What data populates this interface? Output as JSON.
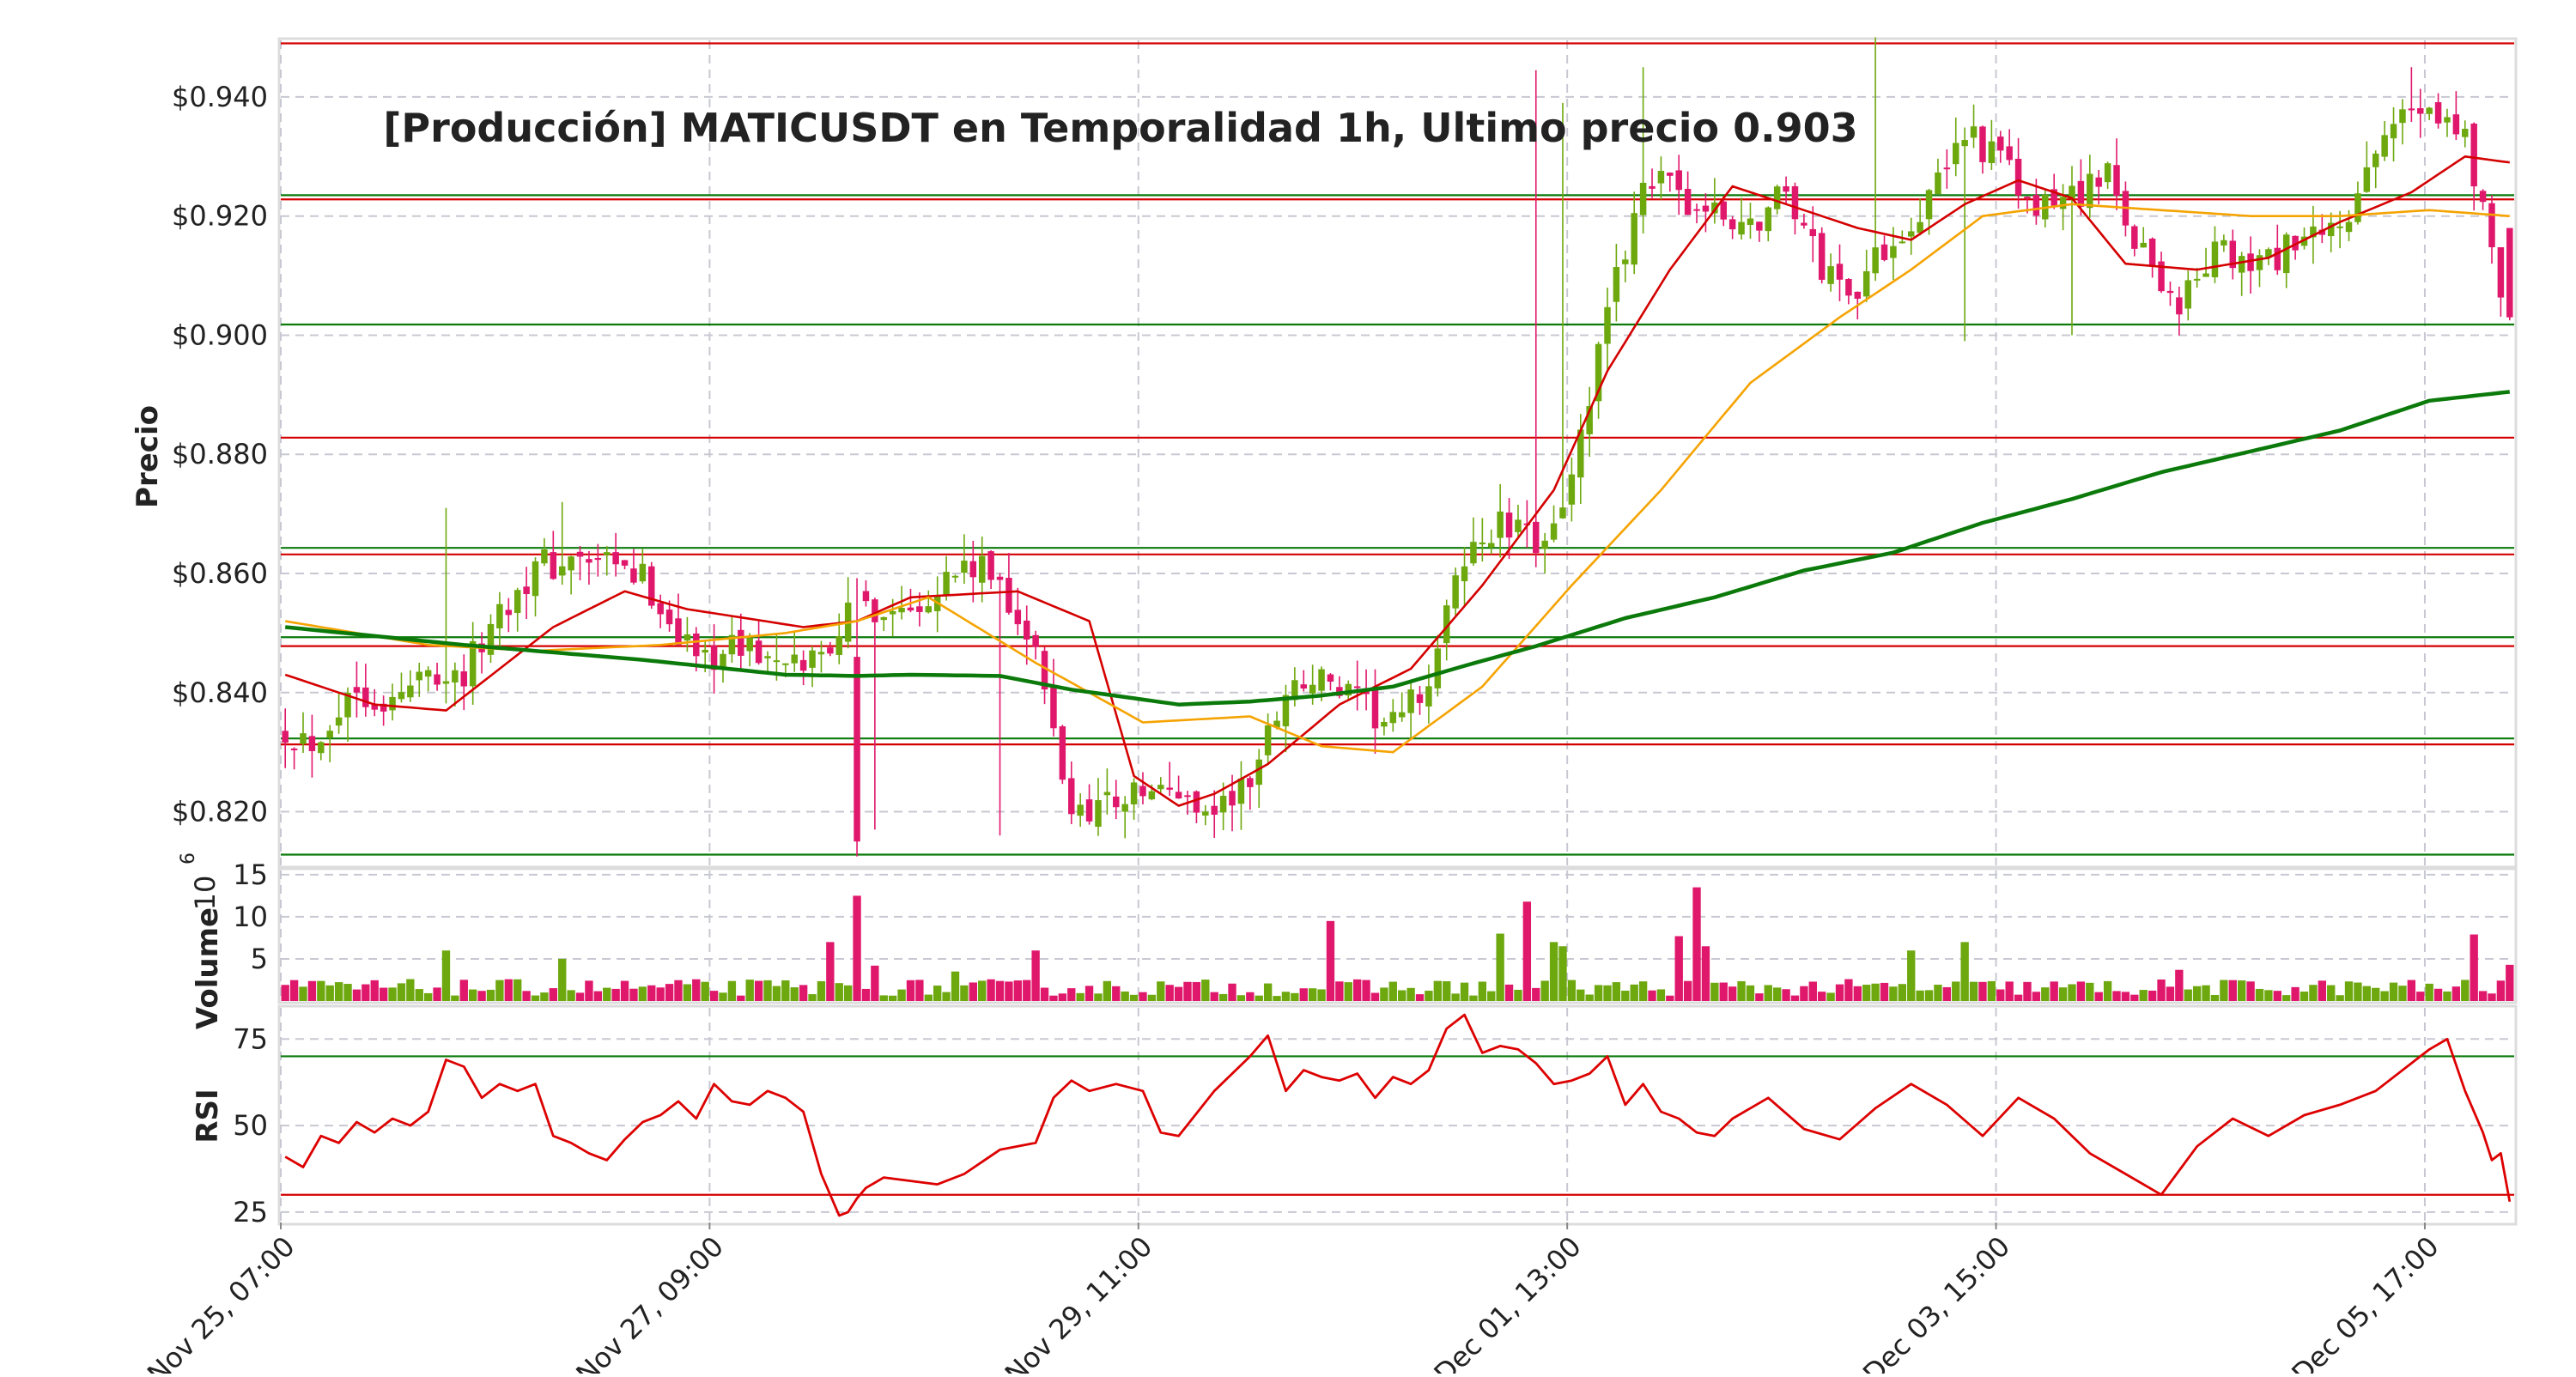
{
  "title": "[Producción] MATICUSDT en Temporalidad 1h, Ultimo precio 0.903",
  "colors": {
    "up": "#6ea80f",
    "down": "#e0186c",
    "ma_fast": "#d40000",
    "ma_mid": "#f5a300",
    "ma_slow": "#0b7a0b",
    "support": "#0b7a0b",
    "resistance": "#d40000",
    "rsi_line": "#dd0000",
    "grid": "#c8c8d2",
    "frame": "#dcdcdc",
    "text": "#222222"
  },
  "chart_data": [
    {
      "type": "candlestick",
      "panel": "price",
      "title": "[Producción] MATICUSDT en Temporalidad 1h, Ultimo precio 0.903",
      "ylabel": "Precio",
      "ylim": [
        0.811,
        0.9495
      ],
      "yticks": [
        0.82,
        0.84,
        0.86,
        0.88,
        0.9,
        0.92,
        0.94
      ],
      "ytick_labels": [
        "$0.820",
        "$0.840",
        "$0.860",
        "$0.880",
        "$0.900",
        "$0.920",
        "$0.940"
      ],
      "xlim": [
        0,
        250
      ],
      "xticks": [
        0,
        48,
        96,
        144,
        192,
        240
      ],
      "xtick_labels": [
        "Nov 25, 07:00",
        "Nov 27, 09:00",
        "Nov 29, 11:00",
        "Dec 01, 13:00",
        "Dec 03, 15:00",
        "Dec 05, 17:00"
      ],
      "grid": true,
      "last_price": 0.903,
      "candles_from_anchors": {
        "count": 250,
        "x": [
          0,
          3,
          8,
          12,
          16,
          20,
          24,
          28,
          34,
          40,
          46,
          52,
          56,
          60,
          64,
          68,
          72,
          76,
          80,
          84,
          88,
          92,
          96,
          100,
          104,
          108,
          112,
          116,
          120,
          124,
          128,
          132,
          136,
          140,
          144,
          148,
          152,
          156,
          160,
          164,
          168,
          172,
          176,
          180,
          184,
          188,
          192,
          196,
          200,
          204,
          208,
          212,
          216,
          220,
          224,
          228,
          232,
          236,
          240,
          244,
          249
        ],
        "close": [
          0.834,
          0.832,
          0.841,
          0.838,
          0.844,
          0.843,
          0.854,
          0.861,
          0.862,
          0.859,
          0.846,
          0.848,
          0.843,
          0.847,
          0.855,
          0.854,
          0.857,
          0.861,
          0.859,
          0.846,
          0.82,
          0.822,
          0.823,
          0.823,
          0.82,
          0.825,
          0.841,
          0.842,
          0.838,
          0.834,
          0.842,
          0.863,
          0.868,
          0.865,
          0.875,
          0.903,
          0.927,
          0.923,
          0.92,
          0.918,
          0.925,
          0.911,
          0.908,
          0.917,
          0.922,
          0.935,
          0.929,
          0.92,
          0.924,
          0.926,
          0.914,
          0.905,
          0.914,
          0.911,
          0.914,
          0.916,
          0.922,
          0.936,
          0.94,
          0.933,
          0.903
        ]
      },
      "moving_averages": [
        {
          "color_key": "ma_fast",
          "x": [
            0,
            10,
            18,
            30,
            38,
            45,
            58,
            64,
            70,
            82,
            90,
            95,
            100,
            104,
            110,
            118,
            126,
            134,
            142,
            148,
            155,
            162,
            168,
            176,
            182,
            188,
            194,
            200,
            206,
            214,
            222,
            230,
            238,
            244,
            249
          ],
          "y": [
            0.843,
            0.838,
            0.837,
            0.851,
            0.857,
            0.854,
            0.851,
            0.852,
            0.856,
            0.857,
            0.852,
            0.826,
            0.821,
            0.823,
            0.828,
            0.838,
            0.844,
            0.858,
            0.874,
            0.894,
            0.911,
            0.925,
            0.922,
            0.918,
            0.916,
            0.922,
            0.926,
            0.923,
            0.912,
            0.911,
            0.913,
            0.919,
            0.924,
            0.93,
            0.929
          ]
        },
        {
          "color_key": "ma_mid",
          "x": [
            0,
            16,
            28,
            42,
            56,
            64,
            72,
            84,
            96,
            108,
            116,
            124,
            134,
            144,
            154,
            164,
            174,
            182,
            190,
            200,
            210,
            220,
            230,
            240,
            249
          ],
          "y": [
            0.852,
            0.848,
            0.847,
            0.848,
            0.85,
            0.852,
            0.856,
            0.845,
            0.835,
            0.836,
            0.831,
            0.83,
            0.841,
            0.858,
            0.874,
            0.892,
            0.903,
            0.911,
            0.92,
            0.922,
            0.921,
            0.92,
            0.92,
            0.921,
            0.92
          ]
        },
        {
          "color_key": "ma_slow",
          "x": [
            0,
            20,
            40,
            56,
            64,
            70,
            80,
            88,
            100,
            108,
            116,
            124,
            132,
            140,
            150,
            160,
            170,
            180,
            190,
            200,
            210,
            220,
            230,
            240,
            249
          ],
          "y": [
            0.851,
            0.848,
            0.8455,
            0.843,
            0.8428,
            0.843,
            0.8428,
            0.8405,
            0.838,
            0.8385,
            0.8395,
            0.841,
            0.8445,
            0.8478,
            0.8525,
            0.856,
            0.8605,
            0.8635,
            0.8685,
            0.8725,
            0.877,
            0.8805,
            0.884,
            0.889,
            0.8905
          ]
        }
      ],
      "horizontal_levels": [
        {
          "y": 0.949,
          "color_key": "resistance"
        },
        {
          "y": 0.9235,
          "color_key": "support"
        },
        {
          "y": 0.9228,
          "color_key": "resistance"
        },
        {
          "y": 0.9018,
          "color_key": "support"
        },
        {
          "y": 0.8828,
          "color_key": "resistance"
        },
        {
          "y": 0.8643,
          "color_key": "support"
        },
        {
          "y": 0.8632,
          "color_key": "resistance"
        },
        {
          "y": 0.8493,
          "color_key": "support"
        },
        {
          "y": 0.8478,
          "color_key": "resistance"
        },
        {
          "y": 0.8323,
          "color_key": "support"
        },
        {
          "y": 0.8313,
          "color_key": "resistance"
        },
        {
          "y": 0.8128,
          "color_key": "support"
        }
      ]
    },
    {
      "type": "bar",
      "panel": "volume",
      "ylabel": "Volume",
      "yexponent": "10^6",
      "exp_base": "10",
      "exp_power": "6",
      "ylim": [
        0,
        15.5
      ],
      "yticks": [
        5,
        10,
        15
      ],
      "ytick_labels": [
        "5",
        "10",
        "15"
      ],
      "bar_width": 0.9,
      "spikes": [
        {
          "x": 18,
          "value": 6.0
        },
        {
          "x": 31,
          "value": 5.0
        },
        {
          "x": 61,
          "value": 7.0
        },
        {
          "x": 64,
          "value": 12.5
        },
        {
          "x": 66,
          "value": 4.2
        },
        {
          "x": 75,
          "value": 3.5
        },
        {
          "x": 84,
          "value": 6.0
        },
        {
          "x": 117,
          "value": 9.5
        },
        {
          "x": 136,
          "value": 8.0
        },
        {
          "x": 139,
          "value": 11.8
        },
        {
          "x": 142,
          "value": 7.0
        },
        {
          "x": 143,
          "value": 6.5
        },
        {
          "x": 156,
          "value": 7.7
        },
        {
          "x": 158,
          "value": 13.5
        },
        {
          "x": 159,
          "value": 6.5
        },
        {
          "x": 182,
          "value": 6.0
        },
        {
          "x": 188,
          "value": 7.0
        },
        {
          "x": 212,
          "value": 3.7
        },
        {
          "x": 245,
          "value": 7.9
        },
        {
          "x": 249,
          "value": 4.3
        }
      ]
    },
    {
      "type": "line",
      "panel": "rsi",
      "ylabel": "RSI",
      "ylim": [
        22,
        84
      ],
      "yticks": [
        25,
        50,
        75
      ],
      "ytick_labels": [
        "25",
        "50",
        "75"
      ],
      "overbought": 70,
      "oversold": 30,
      "x": [
        0,
        2,
        4,
        6,
        8,
        10,
        12,
        14,
        16,
        18,
        20,
        22,
        24,
        26,
        28,
        30,
        32,
        34,
        36,
        38,
        40,
        42,
        44,
        46,
        48,
        50,
        52,
        54,
        56,
        58,
        60,
        62,
        63,
        64,
        65,
        67,
        70,
        73,
        76,
        80,
        84,
        86,
        88,
        90,
        93,
        96,
        98,
        100,
        104,
        108,
        110,
        112,
        114,
        116,
        118,
        120,
        122,
        124,
        126,
        128,
        130,
        132,
        134,
        136,
        138,
        140,
        142,
        144,
        146,
        148,
        150,
        152,
        154,
        156,
        158,
        160,
        162,
        164,
        166,
        170,
        174,
        178,
        182,
        186,
        190,
        194,
        198,
        202,
        206,
        210,
        214,
        218,
        222,
        226,
        230,
        234,
        238,
        240,
        242,
        244,
        246,
        247,
        248,
        249
      ],
      "y": [
        41,
        38,
        47,
        45,
        51,
        48,
        52,
        50,
        54,
        69,
        67,
        58,
        62,
        60,
        62,
        47,
        45,
        42,
        40,
        46,
        51,
        53,
        57,
        52,
        62,
        57,
        56,
        60,
        58,
        54,
        36,
        24,
        25,
        29,
        32,
        35,
        34,
        33,
        36,
        43,
        45,
        58,
        63,
        60,
        62,
        60,
        48,
        47,
        60,
        70,
        76,
        60,
        66,
        64,
        63,
        65,
        58,
        64,
        62,
        66,
        78,
        82,
        71,
        73,
        72,
        68,
        62,
        63,
        65,
        70,
        56,
        62,
        54,
        52,
        48,
        47,
        52,
        55,
        58,
        49,
        46,
        55,
        62,
        56,
        47,
        58,
        52,
        42,
        36,
        30,
        44,
        52,
        47,
        53,
        56,
        60,
        68,
        72,
        75,
        60,
        48,
        40,
        42,
        28
      ]
    }
  ]
}
